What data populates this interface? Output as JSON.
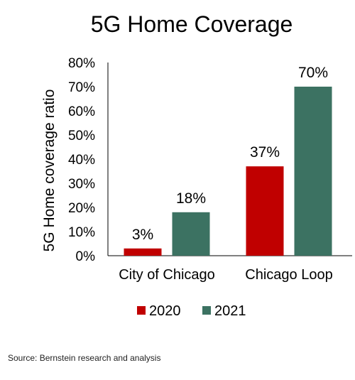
{
  "chart_data": {
    "type": "bar",
    "title": "5G Home Coverage",
    "ylabel": "5G Home coverage ratio",
    "xlabel": "",
    "categories": [
      "City of Chicago",
      "Chicago Loop"
    ],
    "series": [
      {
        "name": "2020",
        "color": "#c00000",
        "values": [
          3,
          37
        ],
        "labels": [
          "3%",
          "37%"
        ]
      },
      {
        "name": "2021",
        "color": "#3c7262",
        "values": [
          18,
          70
        ],
        "labels": [
          "18%",
          "70%"
        ]
      }
    ],
    "ylim": [
      0,
      80
    ],
    "yticks": [
      0,
      10,
      20,
      30,
      40,
      50,
      60,
      70,
      80
    ],
    "ytick_labels": [
      "0%",
      "10%",
      "20%",
      "30%",
      "40%",
      "50%",
      "60%",
      "70%",
      "80%"
    ],
    "grid": false,
    "legend": "bottom"
  },
  "source": "Source: Bernstein research and analysis"
}
